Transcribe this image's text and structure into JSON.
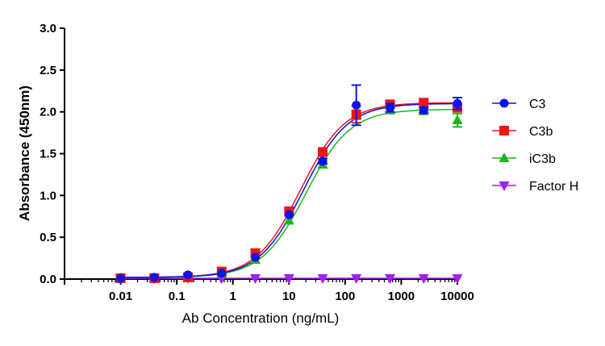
{
  "chart_data": {
    "type": "scatter",
    "title": "",
    "xlabel": "Ab Concentration (ng/mL)",
    "ylabel": "Absorbance (450nm)",
    "xscale": "log",
    "xlim": [
      0.001,
      10000
    ],
    "ylim": [
      0,
      3.0
    ],
    "x_ticks": [
      "0.01",
      "0.1",
      "1",
      "10",
      "100",
      "1000",
      "10000"
    ],
    "y_ticks": [
      "0.0",
      "0.5",
      "1.0",
      "1.5",
      "2.0",
      "2.5",
      "3.0"
    ],
    "grid": false,
    "legend_position": "right",
    "x": [
      0.01,
      0.0398,
      0.158,
      0.631,
      2.51,
      10,
      39.8,
      158,
      631,
      2512,
      10000
    ],
    "series": [
      {
        "name": "C3",
        "color": "#0a14e6",
        "marker": "circle",
        "values": [
          0.01,
          0.02,
          0.05,
          0.07,
          0.26,
          0.77,
          1.41,
          2.08,
          2.05,
          2.02,
          2.1
        ],
        "error": [
          0,
          0,
          0,
          0,
          0,
          0,
          0.03,
          0.24,
          0.05,
          0.03,
          0.07
        ],
        "fit": {
          "bottom": 0.02,
          "top": 2.1,
          "ec50": 18,
          "hill": 1.1
        }
      },
      {
        "name": "C3b",
        "color": "#f01414",
        "marker": "square",
        "values": [
          0.01,
          0.01,
          0.02,
          0.09,
          0.31,
          0.81,
          1.52,
          1.97,
          2.09,
          2.11,
          2.05
        ],
        "error": [
          0,
          0,
          0,
          0,
          0,
          0,
          0,
          0.1,
          0.04,
          0,
          0.04
        ],
        "fit": {
          "bottom": 0.02,
          "top": 2.11,
          "ec50": 16,
          "hill": 1.1
        }
      },
      {
        "name": "iC3b",
        "color": "#1eb41e",
        "marker": "triangle-up",
        "values": [
          0.01,
          0.01,
          0.02,
          0.06,
          0.23,
          0.7,
          1.37,
          1.95,
          2.02,
          2.01,
          1.9
        ],
        "error": [
          0,
          0,
          0,
          0,
          0,
          0,
          0,
          0,
          0.04,
          0.04,
          0.08
        ],
        "fit": {
          "bottom": 0.02,
          "top": 2.03,
          "ec50": 20,
          "hill": 1.1
        }
      },
      {
        "name": "Factor H",
        "color": "#a020f0",
        "marker": "triangle-down",
        "values": [
          0.01,
          0.01,
          0.01,
          0.01,
          0.01,
          0.01,
          0.01,
          0.01,
          0.01,
          0.01,
          0.01
        ],
        "error": [
          0,
          0,
          0,
          0,
          0,
          0,
          0,
          0,
          0,
          0,
          0
        ],
        "fit": {
          "bottom": 0.01,
          "top": 0.01,
          "ec50": 18,
          "hill": 1.1
        }
      }
    ]
  }
}
